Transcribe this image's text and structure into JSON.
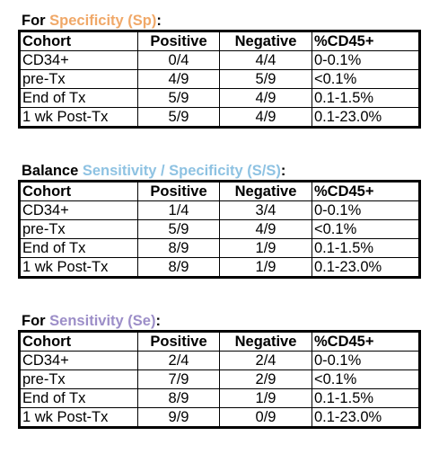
{
  "colors": {
    "specificity": "#f0a868",
    "balance": "#8ec2e2",
    "sensitivity": "#9c8ec8"
  },
  "columns": [
    "Cohort",
    "Positive",
    "Negative",
    "%CD45+"
  ],
  "sections": [
    {
      "prefix": "For ",
      "highlight": "Specificity (Sp)",
      "suffix": ":",
      "rows": [
        [
          "CD34+",
          "0/4",
          "4/4",
          "0-0.1%"
        ],
        [
          "pre-Tx",
          "4/9",
          "5/9",
          "<0.1%"
        ],
        [
          "End of Tx",
          "5/9",
          "4/9",
          "0.1-1.5%"
        ],
        [
          "1 wk Post-Tx",
          "5/9",
          "4/9",
          "0.1-23.0%"
        ]
      ]
    },
    {
      "prefix": "Balance ",
      "highlight": "Sensitivity / Specificity (S/S)",
      "suffix": ":",
      "rows": [
        [
          "CD34+",
          "1/4",
          "3/4",
          "0-0.1%"
        ],
        [
          "pre-Tx",
          "5/9",
          "4/9",
          "<0.1%"
        ],
        [
          "End of Tx",
          "8/9",
          "1/9",
          "0.1-1.5%"
        ],
        [
          "1 wk Post-Tx",
          "8/9",
          "1/9",
          "0.1-23.0%"
        ]
      ]
    },
    {
      "prefix": "For ",
      "highlight": "Sensitivity (Se)",
      "suffix": ":",
      "rows": [
        [
          "CD34+",
          "2/4",
          "2/4",
          "0-0.1%"
        ],
        [
          "pre-Tx",
          "7/9",
          "2/9",
          "<0.1%"
        ],
        [
          "End of Tx",
          "8/9",
          "1/9",
          "0.1-1.5%"
        ],
        [
          "1 wk Post-Tx",
          "9/9",
          "0/9",
          "0.1-23.0%"
        ]
      ]
    }
  ]
}
